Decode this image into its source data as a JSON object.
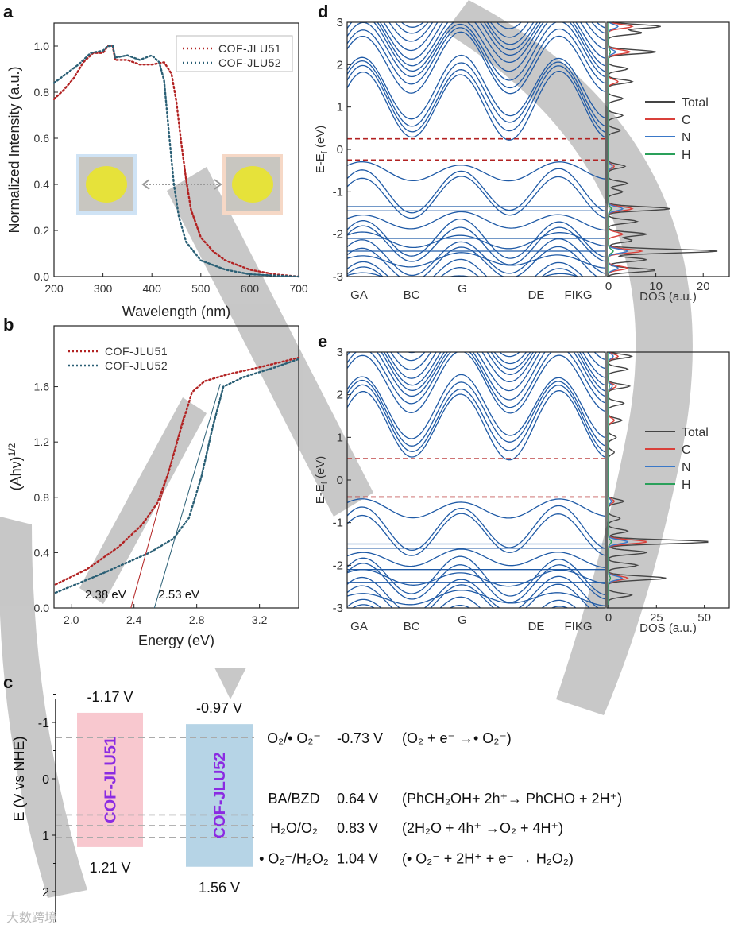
{
  "panels": {
    "a": "a",
    "b": "b",
    "c": "c",
    "d": "d",
    "e": "e"
  },
  "colors": {
    "jlu51": "#b22222",
    "jlu52": "#2a5f75",
    "band": "#1f5aa6",
    "fermi": "#b22222",
    "total": "#444444",
    "C": "#d9403a",
    "N": "#3a78c8",
    "H": "#2aa05a",
    "box51": "#f8c8cf",
    "box52": "#b6d4e6",
    "boxText": "#8b2be2"
  },
  "chart_data": [
    {
      "id": "a",
      "type": "line",
      "title": "",
      "xlabel": "Wavelength (nm)",
      "ylabel": "Normalized Intensity (a.u.)",
      "xlim": [
        200,
        700
      ],
      "ylim": [
        0,
        1.1
      ],
      "xticks": [
        200,
        300,
        400,
        500,
        600,
        700
      ],
      "yticks": [
        0.0,
        0.2,
        0.4,
        0.6,
        0.8,
        1.0
      ],
      "legend": "top-right",
      "series": [
        {
          "name": "COF-JLU51",
          "points": [
            [
              200,
              0.77
            ],
            [
              220,
              0.81
            ],
            [
              240,
              0.86
            ],
            [
              260,
              0.93
            ],
            [
              280,
              0.97
            ],
            [
              300,
              0.97
            ],
            [
              310,
              1.0
            ],
            [
              320,
              1.0
            ],
            [
              325,
              0.94
            ],
            [
              350,
              0.94
            ],
            [
              375,
              0.92
            ],
            [
              400,
              0.92
            ],
            [
              425,
              0.93
            ],
            [
              440,
              0.88
            ],
            [
              450,
              0.76
            ],
            [
              460,
              0.58
            ],
            [
              470,
              0.42
            ],
            [
              480,
              0.29
            ],
            [
              500,
              0.17
            ],
            [
              525,
              0.11
            ],
            [
              550,
              0.07
            ],
            [
              600,
              0.03
            ],
            [
              650,
              0.01
            ],
            [
              700,
              0.0
            ]
          ]
        },
        {
          "name": "COF-JLU52",
          "points": [
            [
              200,
              0.84
            ],
            [
              225,
              0.88
            ],
            [
              250,
              0.92
            ],
            [
              275,
              0.97
            ],
            [
              300,
              0.98
            ],
            [
              310,
              1.0
            ],
            [
              320,
              1.0
            ],
            [
              325,
              0.95
            ],
            [
              350,
              0.96
            ],
            [
              375,
              0.94
            ],
            [
              400,
              0.96
            ],
            [
              415,
              0.93
            ],
            [
              425,
              0.85
            ],
            [
              435,
              0.62
            ],
            [
              445,
              0.4
            ],
            [
              455,
              0.26
            ],
            [
              470,
              0.15
            ],
            [
              500,
              0.07
            ],
            [
              550,
              0.03
            ],
            [
              600,
              0.01
            ],
            [
              700,
              0.0
            ]
          ]
        }
      ]
    },
    {
      "id": "b",
      "type": "line",
      "title": "",
      "xlabel": "Energy (eV)",
      "ylabel": "(Ahν)",
      "ylabel_sup": "1/2",
      "xlim": [
        1.89,
        3.45
      ],
      "ylim": [
        0,
        2.04
      ],
      "xticks": [
        2.0,
        2.4,
        2.8,
        3.2
      ],
      "yticks": [
        0.0,
        0.4,
        0.8,
        1.2,
        1.6
      ],
      "legend": "top-left",
      "series": [
        {
          "name": "COF-JLU51",
          "points": [
            [
              1.9,
              0.17
            ],
            [
              2.1,
              0.28
            ],
            [
              2.3,
              0.44
            ],
            [
              2.45,
              0.6
            ],
            [
              2.55,
              0.76
            ],
            [
              2.62,
              0.98
            ],
            [
              2.7,
              1.3
            ],
            [
              2.77,
              1.56
            ],
            [
              2.85,
              1.64
            ],
            [
              3.0,
              1.69
            ],
            [
              3.2,
              1.74
            ],
            [
              3.45,
              1.81
            ]
          ]
        },
        {
          "name": "COF-JLU52",
          "points": [
            [
              1.9,
              0.11
            ],
            [
              2.2,
              0.25
            ],
            [
              2.5,
              0.4
            ],
            [
              2.65,
              0.5
            ],
            [
              2.75,
              0.65
            ],
            [
              2.83,
              0.95
            ],
            [
              2.9,
              1.3
            ],
            [
              2.97,
              1.6
            ],
            [
              3.1,
              1.67
            ],
            [
              3.3,
              1.74
            ],
            [
              3.45,
              1.8
            ]
          ]
        }
      ],
      "tangents": [
        {
          "series": "COF-JLU51",
          "from": [
            2.38,
            0
          ],
          "to": [
            2.72,
            1.4
          ],
          "label": "2.38 eV"
        },
        {
          "series": "COF-JLU52",
          "from": [
            2.53,
            0
          ],
          "to": [
            2.95,
            1.62
          ],
          "label": "2.53 eV"
        }
      ]
    },
    {
      "id": "d",
      "type": "line",
      "subtype": "band-structure+dos",
      "ylabel": "E-E",
      "ylabel_sub": "f",
      "ylabel_unit": " (eV)",
      "ylim": [
        -3,
        3
      ],
      "yticks": [
        -3,
        -2,
        -1,
        0,
        1,
        2,
        3
      ],
      "kpoints": [
        "GA",
        "BC",
        "G",
        "DE",
        "FIKG"
      ],
      "cbm": 0.25,
      "vbm": -0.25,
      "dos": {
        "xlabel": "DOS (a.u.)",
        "xlim": [
          0,
          25.5
        ],
        "xticks": [
          0,
          10,
          20
        ],
        "legend": [
          "Total",
          "C",
          "N",
          "H"
        ],
        "total": [
          [
            2.9,
            11
          ],
          [
            2.75,
            7
          ],
          [
            2.3,
            10
          ],
          [
            1.9,
            4
          ],
          [
            1.6,
            5
          ],
          [
            1.2,
            3
          ],
          [
            0.8,
            3
          ],
          [
            0.45,
            2.5
          ],
          [
            -0.4,
            3.5
          ],
          [
            -0.8,
            4
          ],
          [
            -1.0,
            3
          ],
          [
            -1.4,
            13
          ],
          [
            -1.7,
            6
          ],
          [
            -2.0,
            8
          ],
          [
            -2.15,
            5
          ],
          [
            -2.4,
            23
          ],
          [
            -2.6,
            8
          ],
          [
            -2.85,
            10
          ]
        ],
        "C": [
          [
            2.9,
            5
          ],
          [
            2.3,
            4.5
          ],
          [
            1.6,
            2
          ],
          [
            -0.4,
            1.2
          ],
          [
            -1.4,
            5
          ],
          [
            -2.0,
            3
          ],
          [
            -2.4,
            7
          ],
          [
            -2.8,
            4
          ]
        ],
        "N": [
          [
            2.9,
            2
          ],
          [
            2.3,
            1.5
          ],
          [
            -0.4,
            0.8
          ],
          [
            -1.4,
            3
          ],
          [
            -2.4,
            4
          ],
          [
            -2.8,
            2
          ]
        ],
        "H": [
          [
            2.3,
            0.4
          ],
          [
            -1.4,
            0.6
          ],
          [
            -2.4,
            1
          ]
        ]
      }
    },
    {
      "id": "e",
      "type": "line",
      "subtype": "band-structure+dos",
      "ylabel": "E-E",
      "ylabel_sub": "f",
      "ylabel_unit": " (eV)",
      "ylim": [
        -3,
        3
      ],
      "yticks": [
        -3,
        -2,
        -1,
        0,
        1,
        2,
        3
      ],
      "kpoints": [
        "GA",
        "BC",
        "G",
        "DE",
        "FIKG"
      ],
      "cbm": 0.5,
      "vbm": -0.4,
      "dos": {
        "xlabel": "DOS (a.u.)",
        "xlim": [
          0,
          63
        ],
        "xticks": [
          0,
          25,
          50
        ],
        "legend": [
          "Total",
          "C",
          "N",
          "H"
        ],
        "total": [
          [
            2.9,
            12
          ],
          [
            2.6,
            10
          ],
          [
            2.2,
            11
          ],
          [
            1.8,
            8
          ],
          [
            1.4,
            7
          ],
          [
            1.0,
            4
          ],
          [
            0.65,
            3
          ],
          [
            -0.5,
            8
          ],
          [
            -0.9,
            6
          ],
          [
            -1.2,
            10
          ],
          [
            -1.45,
            53
          ],
          [
            -1.7,
            20
          ],
          [
            -2.0,
            15
          ],
          [
            -2.3,
            30
          ],
          [
            -2.7,
            12
          ]
        ],
        "C": [
          [
            2.9,
            5
          ],
          [
            2.2,
            4
          ],
          [
            1.4,
            3
          ],
          [
            -0.5,
            3
          ],
          [
            -1.45,
            20
          ],
          [
            -2.3,
            10
          ]
        ],
        "N": [
          [
            2.9,
            2.5
          ],
          [
            2.2,
            2
          ],
          [
            -0.5,
            1.5
          ],
          [
            -1.45,
            10
          ],
          [
            -2.3,
            7
          ]
        ],
        "H": [
          [
            2.2,
            0.5
          ],
          [
            -1.45,
            1.5
          ],
          [
            -2.3,
            1
          ]
        ]
      }
    },
    {
      "id": "c",
      "type": "bar",
      "subtype": "band-alignment",
      "ylabel": "E (V vs NHE)",
      "ylim": [
        -1.3,
        2.1
      ],
      "yticks": [
        -1,
        0,
        1,
        2
      ],
      "bands": [
        {
          "name": "COF-JLU51",
          "cb": -1.17,
          "vb": 1.21,
          "cb_label": "-1.17 V",
          "vb_label": "1.21 V"
        },
        {
          "name": "COF-JLU52",
          "cb": -0.97,
          "vb": 1.56,
          "cb_label": "-0.97 V",
          "vb_label": "1.56 V"
        }
      ],
      "potentials": [
        {
          "couple": "O₂/• O₂⁻",
          "value": -0.73,
          "label": "-0.73 V",
          "reaction": "(O₂ + e⁻ →• O₂⁻)",
          "text_at": -0.73
        },
        {
          "couple": "BA/BZD",
          "value": 0.64,
          "label": "0.64 V",
          "reaction": "(PhCH₂OH+ 2h⁺→ PhCHO + 2H⁺)",
          "text_at": 0.34
        },
        {
          "couple": "H₂O/O₂",
          "value": 0.83,
          "label": "0.83 V",
          "reaction": "(2H₂O + 4h⁺ →O₂ + 4H⁺)",
          "text_at": 0.86
        },
        {
          "couple": "• O₂⁻/H₂O₂",
          "value": 1.04,
          "label": "1.04 V",
          "reaction": "(• O₂⁻ + 2H⁺ + e⁻ → H₂O₂)",
          "text_at": 1.4
        }
      ]
    }
  ],
  "watermark": "大数跨境"
}
